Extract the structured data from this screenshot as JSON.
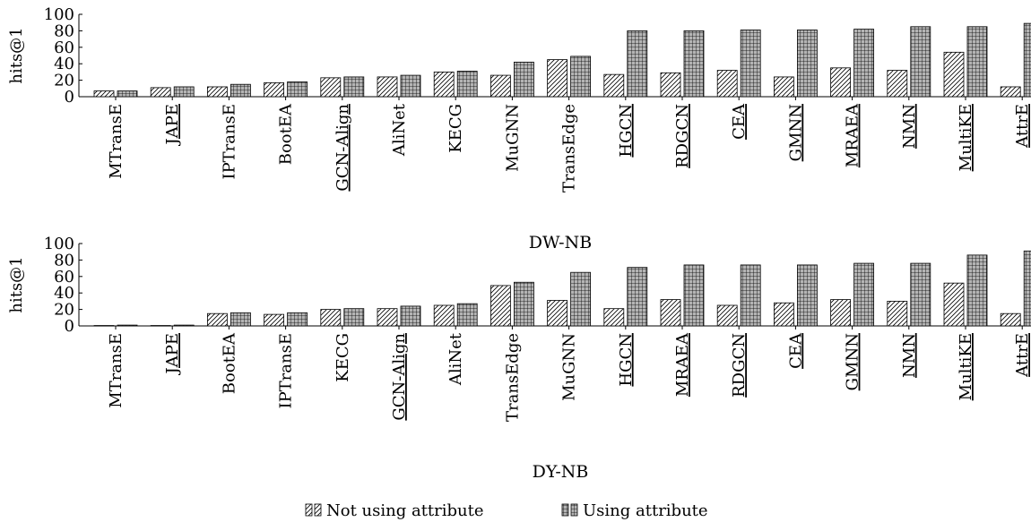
{
  "legend": {
    "not_using": "Not using attribute",
    "using": "Using attribute"
  },
  "style": {
    "not_using_fill": "#ffffff",
    "using_fill": "#b4b4b4",
    "not_using_pattern": "north-east-hatch",
    "using_pattern": "grid",
    "legend_position": "bottom-center"
  },
  "chart_data": [
    {
      "type": "bar",
      "xlabel": "DW-NB",
      "ylabel": "hits@1",
      "ylim": [
        0,
        100
      ],
      "yticks": [
        0,
        20,
        40,
        60,
        80,
        100
      ],
      "grid": false,
      "categories": [
        "MTransE",
        "JAPE",
        "IPTransE",
        "BootEA",
        "GCN-Align",
        "AliNet",
        "KECG",
        "MuGNN",
        "TransEdge",
        "HGCN",
        "RDGCN",
        "CEA",
        "GMNN",
        "MRAEA",
        "NMN",
        "MultiKE",
        "AttrE"
      ],
      "underlined": [
        false,
        true,
        false,
        false,
        true,
        false,
        false,
        false,
        false,
        true,
        true,
        true,
        true,
        true,
        true,
        true,
        true
      ],
      "series": [
        {
          "name": "Not using attribute",
          "values": [
            7,
            11,
            12,
            17,
            23,
            24,
            30,
            26,
            45,
            27,
            29,
            32,
            24,
            35,
            32,
            54,
            12
          ]
        },
        {
          "name": "Using attribute",
          "values": [
            7,
            12,
            15,
            18,
            24,
            26,
            31,
            42,
            49,
            80,
            80,
            81,
            81,
            82,
            85,
            85,
            89
          ]
        }
      ]
    },
    {
      "type": "bar",
      "xlabel": "DY-NB",
      "ylabel": "hits@1",
      "ylim": [
        0,
        100
      ],
      "yticks": [
        0,
        20,
        40,
        60,
        80,
        100
      ],
      "grid": false,
      "categories": [
        "MTransE",
        "JAPE",
        "BootEA",
        "IPTransE",
        "KECG",
        "GCN-Align",
        "AliNet",
        "TransEdge",
        "MuGNN",
        "HGCN",
        "MRAEA",
        "RDGCN",
        "CEA",
        "GMNN",
        "NMN",
        "MultiKE",
        "AttrE"
      ],
      "underlined": [
        false,
        true,
        false,
        false,
        false,
        true,
        false,
        false,
        false,
        true,
        true,
        true,
        true,
        true,
        true,
        true,
        true
      ],
      "series": [
        {
          "name": "Not using attribute",
          "values": [
            0.5,
            0.5,
            15,
            14,
            20,
            21,
            25,
            49,
            31,
            21,
            32,
            25,
            28,
            32,
            30,
            52,
            15
          ]
        },
        {
          "name": "Using attribute",
          "values": [
            1,
            1,
            16,
            16,
            21,
            24,
            27,
            53,
            65,
            71,
            74,
            74,
            74,
            76,
            76,
            86,
            91
          ]
        }
      ]
    }
  ]
}
